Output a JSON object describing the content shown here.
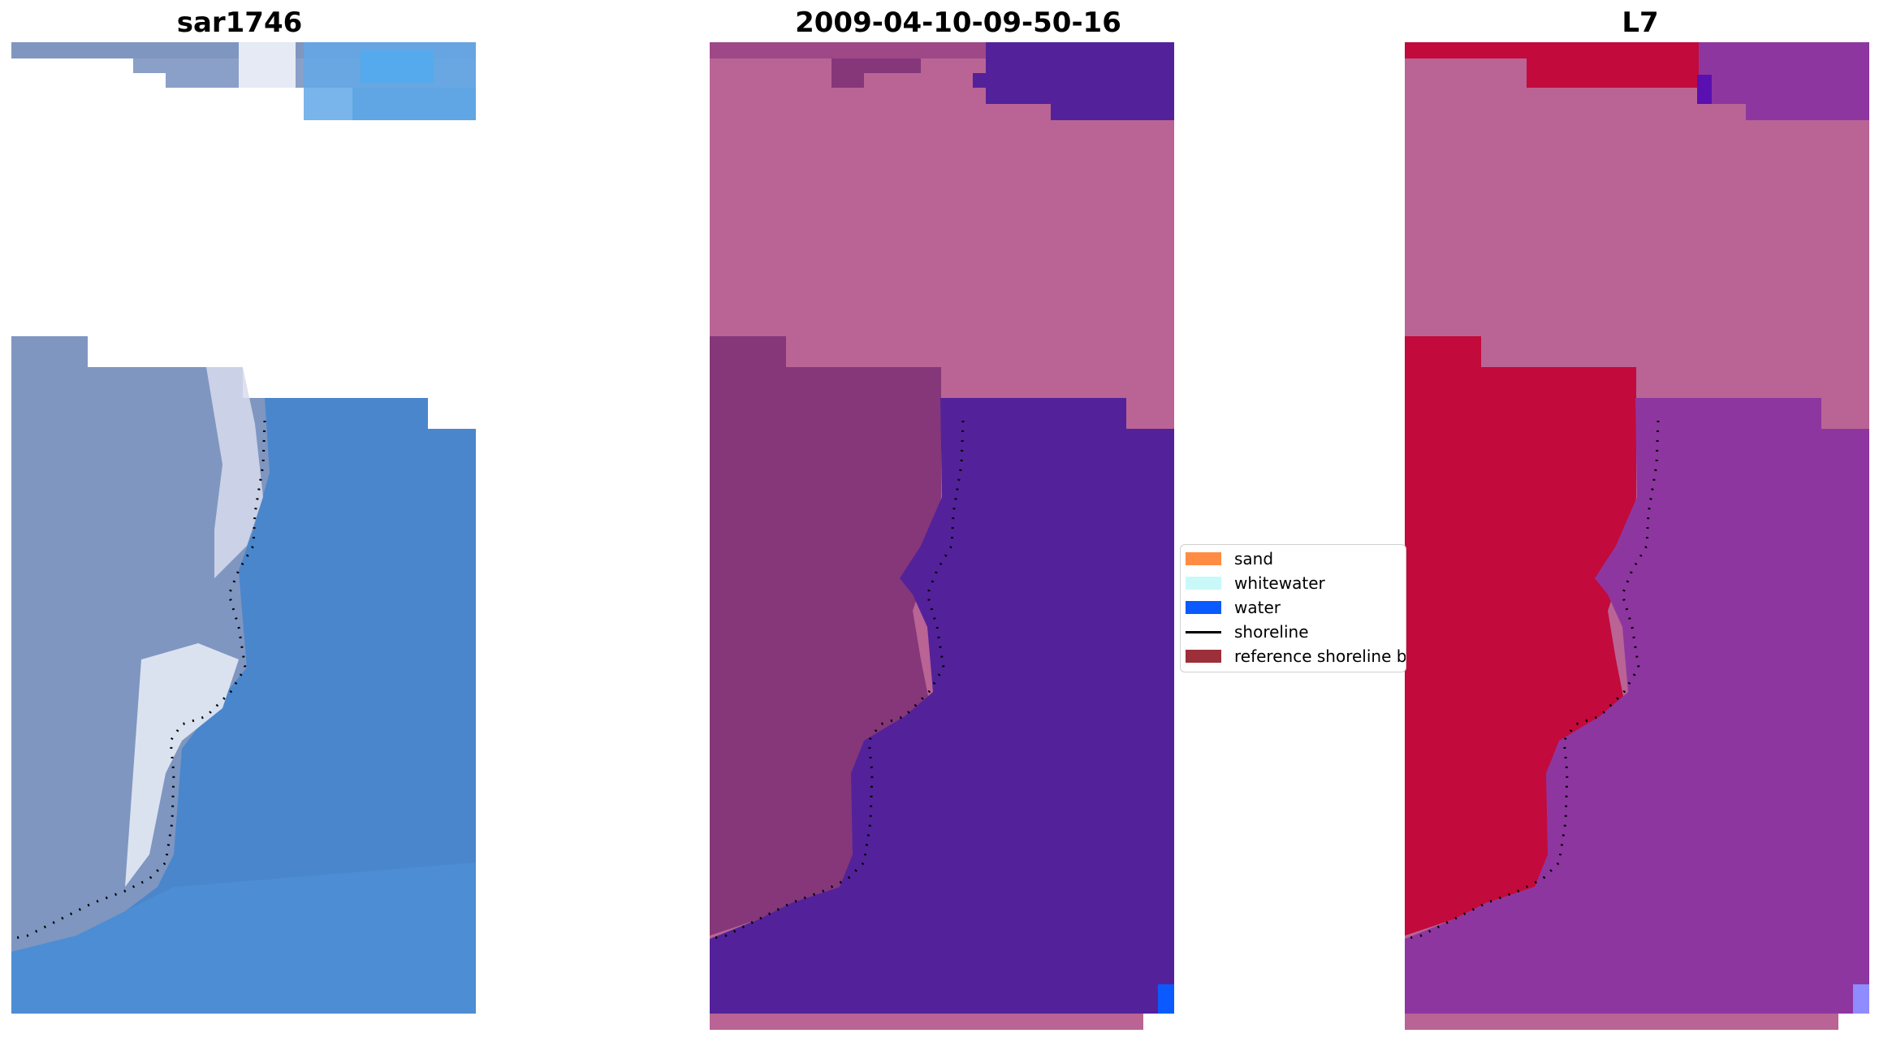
{
  "panels": [
    {
      "title": "sar1746",
      "kind": "rgb"
    },
    {
      "title": "2009-04-10-09-50-16",
      "kind": "classified"
    },
    {
      "title": "L7",
      "kind": "mndwi"
    }
  ],
  "legend": {
    "items": [
      {
        "label": "sand",
        "color": "#ff8c42"
      },
      {
        "label": "whitewater",
        "color": "#c8f8f8"
      },
      {
        "label": "water",
        "color": "#0a5aff"
      },
      {
        "label": "shoreline",
        "color": "#000000"
      },
      {
        "label": "reference shoreline buffer",
        "color": "#9c2f3a"
      }
    ]
  },
  "colors": {
    "rgb_sea": "#4a86cc",
    "rgb_land": "#7f96c0",
    "rgb_whitewater": "#e6eaf4",
    "class_land": "#b96494",
    "class_dark": "#85377a",
    "class_water": "#53229a",
    "mndwi_land": "#c20a3c",
    "mndwi_water": "#8e36a0",
    "mndwi_pink": "#b96494",
    "shoreline_dots": "#000000"
  }
}
